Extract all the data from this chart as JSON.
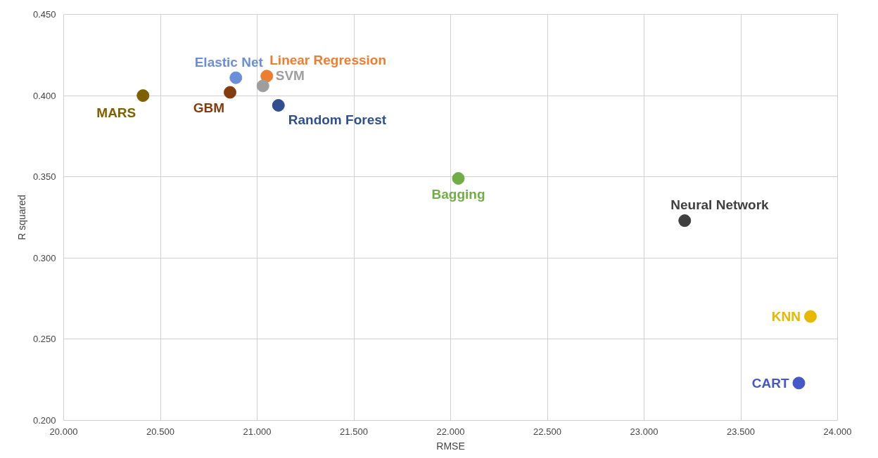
{
  "chart_data": {
    "type": "scatter",
    "xlabel": "RMSE",
    "ylabel": "R squared",
    "xlim": [
      20.0,
      24.0
    ],
    "ylim": [
      0.2,
      0.45
    ],
    "xticks": [
      {
        "value": 20.0,
        "label": "20.000"
      },
      {
        "value": 20.5,
        "label": "20.500"
      },
      {
        "value": 21.0,
        "label": "21.000"
      },
      {
        "value": 21.5,
        "label": "21.500"
      },
      {
        "value": 22.0,
        "label": "22.000"
      },
      {
        "value": 22.5,
        "label": "22.500"
      },
      {
        "value": 23.0,
        "label": "23.000"
      },
      {
        "value": 23.5,
        "label": "23.500"
      },
      {
        "value": 24.0,
        "label": "24.000"
      }
    ],
    "yticks": [
      {
        "value": 0.2,
        "label": "0.200"
      },
      {
        "value": 0.25,
        "label": "0.250"
      },
      {
        "value": 0.3,
        "label": "0.300"
      },
      {
        "value": 0.35,
        "label": "0.350"
      },
      {
        "value": 0.4,
        "label": "0.400"
      },
      {
        "value": 0.45,
        "label": "0.450"
      }
    ],
    "grid": true,
    "marker": "circle",
    "series": [
      {
        "name": "MARS",
        "color": "#7f6000",
        "x": [
          20.41
        ],
        "values": [
          0.4
        ]
      },
      {
        "name": "Elastic Net",
        "color": "#6a8fd8",
        "x": [
          20.89
        ],
        "values": [
          0.411
        ]
      },
      {
        "name": "Linear Regression",
        "color": "#ed7d31",
        "x": [
          21.05
        ],
        "values": [
          0.412
        ]
      },
      {
        "name": "SVM",
        "color": "#9e9e9e",
        "x": [
          21.03
        ],
        "values": [
          0.406
        ]
      },
      {
        "name": "GBM",
        "color": "#843c0c",
        "x": [
          20.86
        ],
        "values": [
          0.402
        ]
      },
      {
        "name": "Random Forest",
        "color": "#2f4f8f",
        "x": [
          21.11
        ],
        "values": [
          0.394
        ]
      },
      {
        "name": "Bagging",
        "color": "#70ad47",
        "x": [
          22.04
        ],
        "values": [
          0.349
        ]
      },
      {
        "name": "Neural Network",
        "color": "#404040",
        "x": [
          23.21
        ],
        "values": [
          0.323
        ]
      },
      {
        "name": "KNN",
        "color": "#e6b800",
        "x": [
          23.86
        ],
        "values": [
          0.264
        ]
      },
      {
        "name": "CART",
        "color": "#4458c8",
        "x": [
          23.8
        ],
        "values": [
          0.223
        ]
      }
    ]
  }
}
